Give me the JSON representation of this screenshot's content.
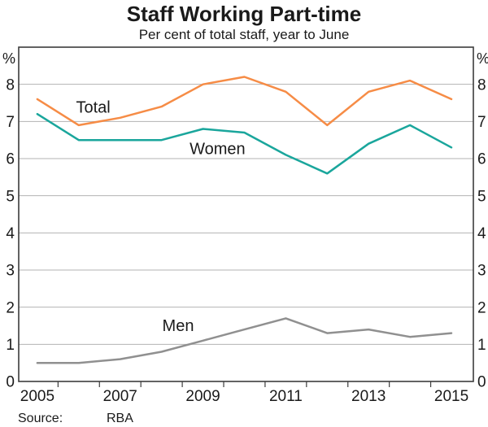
{
  "header": {
    "title": "Staff Working Part-time",
    "subtitle": "Per cent of total staff, year to June"
  },
  "footer": {
    "source_label": "Source:",
    "source_value": "RBA"
  },
  "colors": {
    "total_line": "#F68C46",
    "women_line": "#1AA69C",
    "men_line": "#909090",
    "gridline": "#B3B3B3",
    "frame": "#3C3C3C",
    "text": "#1A1A1A"
  },
  "chart_data": {
    "type": "line",
    "title": "Staff Working Part-time",
    "subtitle": "Per cent of total staff, year to June",
    "source": "RBA",
    "x": [
      2005,
      2006,
      2007,
      2008,
      2009,
      2010,
      2011,
      2012,
      2013,
      2014,
      2015
    ],
    "series": [
      {
        "name": "Total",
        "color": "#F68C46",
        "values": [
          7.6,
          6.9,
          7.1,
          7.4,
          8.0,
          8.2,
          7.8,
          6.9,
          7.8,
          8.1,
          7.6
        ],
        "label_anchor": {
          "x": 2006.35,
          "y": 7.39
        }
      },
      {
        "name": "Women",
        "color": "#1AA69C",
        "values": [
          7.2,
          6.5,
          6.5,
          6.5,
          6.8,
          6.7,
          6.1,
          5.6,
          6.4,
          6.9,
          6.3
        ],
        "label_anchor": {
          "x": 2009.35,
          "y": 6.27
        }
      },
      {
        "name": "Men",
        "color": "#909090",
        "values": [
          0.5,
          0.5,
          0.6,
          0.8,
          1.1,
          1.4,
          1.7,
          1.3,
          1.4,
          1.2,
          1.3
        ],
        "label_anchor": {
          "x": 2008.4,
          "y": 1.51
        }
      }
    ],
    "xlim": [
      2004.55,
      2015.53
    ],
    "ylim": [
      0,
      9
    ],
    "ytick_values": [
      0,
      1,
      2,
      3,
      4,
      5,
      6,
      7,
      8
    ],
    "gridline_values": [
      1,
      2,
      3,
      4,
      5,
      6,
      7,
      8
    ],
    "xtick_label_values": [
      2005,
      2007,
      2009,
      2011,
      2013,
      2015
    ],
    "xtick_minor_values": [
      2005.5,
      2006.5,
      2007.5,
      2008.5,
      2009.5,
      2010.5,
      2011.5,
      2012.5,
      2013.5,
      2014.5
    ],
    "axis_unit": "%",
    "grid": "horizontal",
    "legend": "inline-series-labels",
    "y_axis_sides": "both"
  }
}
